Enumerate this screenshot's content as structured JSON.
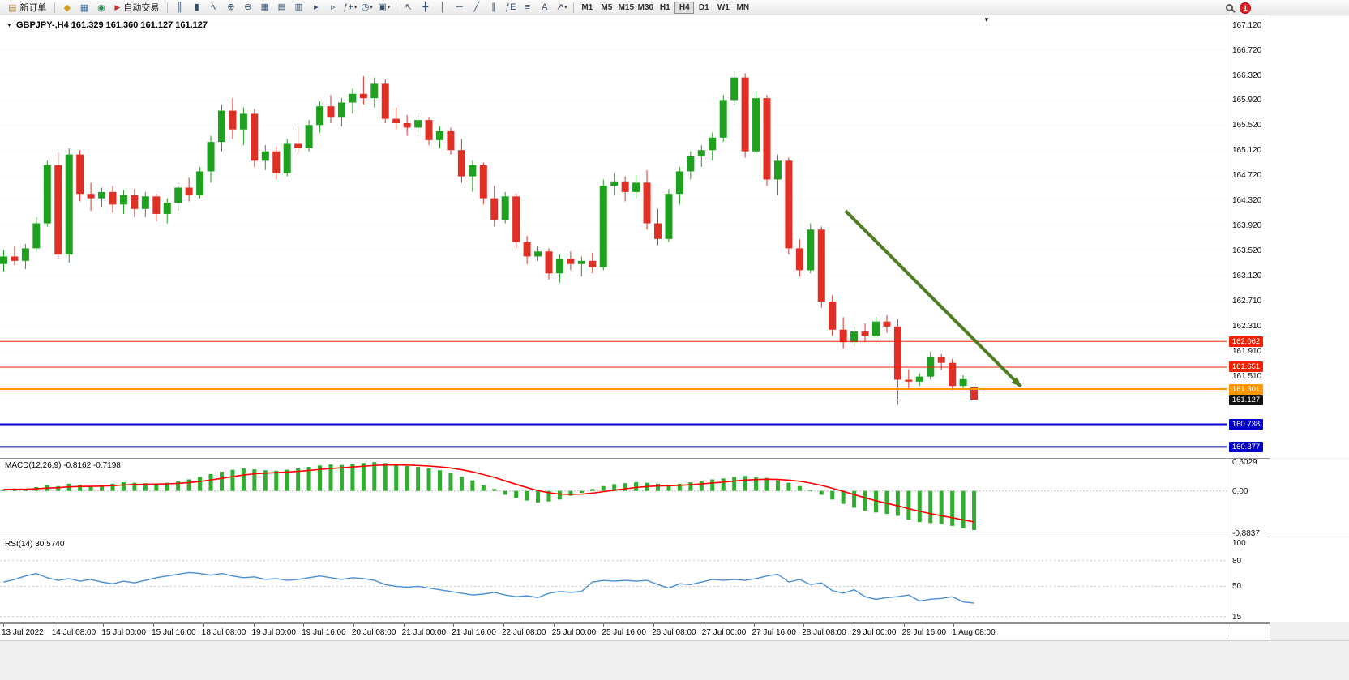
{
  "colors": {
    "up": "#1fa11f",
    "down": "#e03026",
    "macd_bar": "#2fae2f",
    "macd_signal": "#ff0000",
    "rsi_line": "#4a8fd4",
    "grid": "#e7e7e7",
    "arrow": "#4e7d22"
  },
  "toolbar": {
    "new_order": {
      "icon": "▤",
      "label": "新订单"
    },
    "window_icons": [
      {
        "name": "market-watch-icon",
        "glyph": "◆",
        "color": "#d49a1a"
      },
      {
        "name": "data-window-icon",
        "glyph": "▦",
        "color": "#3a6ea5"
      },
      {
        "name": "navigator-icon",
        "glyph": "◉",
        "color": "#2e8b57"
      }
    ],
    "auto_trading": {
      "icon": "▶",
      "label": "自动交易",
      "icon_color": "#cc3333"
    },
    "chart_tools": [
      {
        "name": "bar-chart-icon",
        "glyph": "║"
      },
      {
        "name": "candlestick-chart-icon",
        "glyph": "▮"
      },
      {
        "name": "line-chart-icon",
        "glyph": "∿"
      },
      {
        "name": "zoom-in-icon",
        "glyph": "⊕"
      },
      {
        "name": "zoom-out-icon",
        "glyph": "⊖"
      },
      {
        "name": "tile-windows-icon",
        "glyph": "▦"
      },
      {
        "name": "cascade-windows-icon",
        "glyph": "▤"
      },
      {
        "name": "arrange-windows-icon",
        "glyph": "▥"
      },
      {
        "name": "auto-scroll-icon",
        "glyph": "▸"
      },
      {
        "name": "chart-shift-icon",
        "glyph": "▹"
      },
      {
        "name": "indicators-icon",
        "glyph": "ƒ+",
        "caret": true
      },
      {
        "name": "periods-icon",
        "glyph": "◷",
        "caret": true
      },
      {
        "name": "templates-icon",
        "glyph": "▣",
        "caret": true
      }
    ],
    "draw_tools": [
      {
        "name": "cursor-icon",
        "glyph": "↖"
      },
      {
        "name": "crosshair-icon",
        "glyph": "╋"
      },
      {
        "name": "vertical-line-icon",
        "glyph": "│"
      },
      {
        "name": "horizontal-line-icon",
        "glyph": "─"
      },
      {
        "name": "trendline-icon",
        "glyph": "╱"
      },
      {
        "name": "channel-icon",
        "glyph": "∥"
      },
      {
        "name": "fibonacci-icon",
        "glyph": "ƒE"
      },
      {
        "name": "shapes-icon",
        "glyph": "≡"
      },
      {
        "name": "text-icon",
        "glyph": "A"
      },
      {
        "name": "arrows-icon",
        "glyph": "↗",
        "caret": true
      }
    ],
    "caret_glyph": "▾",
    "timeframes": [
      "M1",
      "M5",
      "M15",
      "M30",
      "H1",
      "H4",
      "D1",
      "W1",
      "MN"
    ],
    "active_timeframe": "H4",
    "notification_badge": "1"
  },
  "chart": {
    "title": "GBPJPY-,H4 161.329 161.360 161.127 161.127",
    "menu_marker": "▼",
    "shift_marker": "▼"
  },
  "time_axis": {
    "labels": [
      "13 Jul 2022",
      "14 Jul 08:00",
      "15 Jul 00:00",
      "15 Jul 16:00",
      "18 Jul 08:00",
      "19 Jul 00:00",
      "19 Jul 16:00",
      "20 Jul 08:00",
      "21 Jul 00:00",
      "21 Jul 16:00",
      "22 Jul 08:00",
      "25 Jul 00:00",
      "25 Jul 16:00",
      "26 Jul 08:00",
      "27 Jul 00:00",
      "27 Jul 16:00",
      "28 Jul 08:00",
      "29 Jul 00:00",
      "29 Jul 16:00",
      "1 Aug 08:00"
    ]
  },
  "chart_data": [
    {
      "type": "candlestick",
      "symbol": "GBPJPY-",
      "timeframe": "H4",
      "ylim": [
        160.2,
        167.26
      ],
      "price_ticks": [
        "167.120",
        "166.720",
        "166.320",
        "165.920",
        "165.520",
        "165.120",
        "164.720",
        "164.320",
        "163.920",
        "163.520",
        "163.120",
        "162.710",
        "162.310",
        "161.910",
        "161.510"
      ],
      "horizontal_lines": [
        {
          "price": 162.062,
          "label": "162.062",
          "color": "#f02000",
          "width": 1
        },
        {
          "price": 161.651,
          "label": "161.651",
          "color": "#f02000",
          "width": 1
        },
        {
          "price": 161.301,
          "label": "161.301",
          "color": "#ff9800",
          "width": 2
        },
        {
          "price": 161.127,
          "label": "161.127",
          "color": "#101010",
          "width": 1
        },
        {
          "price": 160.738,
          "label": "160.738",
          "color": "#0000cd",
          "width": 2
        },
        {
          "price": 160.377,
          "label": "160.377",
          "color": "#0000cd",
          "width": 2
        }
      ],
      "annotation_arrow": {
        "from_index": 77.2,
        "from_price": 164.15,
        "to_index": 93.3,
        "to_price": 161.34,
        "color": "#4e7d22"
      },
      "ohlc": [
        [
          163.3,
          163.52,
          163.18,
          163.42
        ],
        [
          163.42,
          163.58,
          163.28,
          163.35
        ],
        [
          163.35,
          163.62,
          163.22,
          163.55
        ],
        [
          163.55,
          164.05,
          163.5,
          163.95
        ],
        [
          163.95,
          164.95,
          163.9,
          164.88
        ],
        [
          164.88,
          165.08,
          163.38,
          163.45
        ],
        [
          163.45,
          165.15,
          163.32,
          165.05
        ],
        [
          165.05,
          165.12,
          164.3,
          164.42
        ],
        [
          164.42,
          164.6,
          164.15,
          164.35
        ],
        [
          164.35,
          164.52,
          164.2,
          164.45
        ],
        [
          164.45,
          164.55,
          164.12,
          164.25
        ],
        [
          164.25,
          164.48,
          164.1,
          164.4
        ],
        [
          164.4,
          164.5,
          164.05,
          164.18
        ],
        [
          164.18,
          164.45,
          164.05,
          164.38
        ],
        [
          164.38,
          164.42,
          163.98,
          164.1
        ],
        [
          164.1,
          164.35,
          163.95,
          164.28
        ],
        [
          164.28,
          164.6,
          164.15,
          164.52
        ],
        [
          164.52,
          164.68,
          164.3,
          164.4
        ],
        [
          164.4,
          164.85,
          164.35,
          164.78
        ],
        [
          164.78,
          165.35,
          164.6,
          165.25
        ],
        [
          165.25,
          165.85,
          165.1,
          165.75
        ],
        [
          165.75,
          165.95,
          165.3,
          165.45
        ],
        [
          165.45,
          165.8,
          165.2,
          165.7
        ],
        [
          165.7,
          165.78,
          164.85,
          164.95
        ],
        [
          164.95,
          165.2,
          164.8,
          165.1
        ],
        [
          165.1,
          165.18,
          164.65,
          164.75
        ],
        [
          164.75,
          165.3,
          164.7,
          165.22
        ],
        [
          165.22,
          165.5,
          165.05,
          165.15
        ],
        [
          165.15,
          165.6,
          165.1,
          165.52
        ],
        [
          165.52,
          165.9,
          165.4,
          165.82
        ],
        [
          165.82,
          166.0,
          165.55,
          165.65
        ],
        [
          165.65,
          165.95,
          165.5,
          165.88
        ],
        [
          165.88,
          166.1,
          165.7,
          166.02
        ],
        [
          166.02,
          166.3,
          165.85,
          165.95
        ],
        [
          165.95,
          166.28,
          165.8,
          166.18
        ],
        [
          166.18,
          166.25,
          165.55,
          165.62
        ],
        [
          165.62,
          165.8,
          165.45,
          165.55
        ],
        [
          165.55,
          165.68,
          165.35,
          165.48
        ],
        [
          165.48,
          165.72,
          165.4,
          165.6
        ],
        [
          165.6,
          165.65,
          165.2,
          165.28
        ],
        [
          165.28,
          165.5,
          165.15,
          165.42
        ],
        [
          165.42,
          165.48,
          165.05,
          165.12
        ],
        [
          165.12,
          165.3,
          164.6,
          164.7
        ],
        [
          164.7,
          164.95,
          164.45,
          164.88
        ],
        [
          164.88,
          164.92,
          164.25,
          164.35
        ],
        [
          164.35,
          164.55,
          163.9,
          164.0
        ],
        [
          164.0,
          164.45,
          163.95,
          164.38
        ],
        [
          164.38,
          164.42,
          163.55,
          163.65
        ],
        [
          163.65,
          163.75,
          163.3,
          163.42
        ],
        [
          163.42,
          163.58,
          163.35,
          163.5
        ],
        [
          163.5,
          163.55,
          163.05,
          163.15
        ],
        [
          163.15,
          163.45,
          163.0,
          163.38
        ],
        [
          163.38,
          163.5,
          163.2,
          163.3
        ],
        [
          163.3,
          163.42,
          163.1,
          163.35
        ],
        [
          163.35,
          163.48,
          163.15,
          163.25
        ],
        [
          163.25,
          164.65,
          163.2,
          164.55
        ],
        [
          164.55,
          164.75,
          164.4,
          164.62
        ],
        [
          164.62,
          164.7,
          164.3,
          164.45
        ],
        [
          164.45,
          164.72,
          164.35,
          164.6
        ],
        [
          164.6,
          164.8,
          163.85,
          163.95
        ],
        [
          163.95,
          164.18,
          163.6,
          163.7
        ],
        [
          163.7,
          164.5,
          163.65,
          164.42
        ],
        [
          164.42,
          164.85,
          164.25,
          164.78
        ],
        [
          164.78,
          165.1,
          164.65,
          165.02
        ],
        [
          165.02,
          165.2,
          164.85,
          165.12
        ],
        [
          165.12,
          165.4,
          164.95,
          165.32
        ],
        [
          165.32,
          166.0,
          165.25,
          165.92
        ],
        [
          165.92,
          166.38,
          165.85,
          166.28
        ],
        [
          166.28,
          166.35,
          165.0,
          165.1
        ],
        [
          165.1,
          166.05,
          165.05,
          165.95
        ],
        [
          165.95,
          166.0,
          164.55,
          164.65
        ],
        [
          164.65,
          165.05,
          164.4,
          164.95
        ],
        [
          164.95,
          165.0,
          163.45,
          163.55
        ],
        [
          163.55,
          163.7,
          163.1,
          163.2
        ],
        [
          163.2,
          163.95,
          163.15,
          163.85
        ],
        [
          163.85,
          163.9,
          162.6,
          162.7
        ],
        [
          162.7,
          162.8,
          162.15,
          162.25
        ],
        [
          162.25,
          162.45,
          161.95,
          162.05
        ],
        [
          162.05,
          162.3,
          161.98,
          162.22
        ],
        [
          162.22,
          162.35,
          162.05,
          162.15
        ],
        [
          162.15,
          162.45,
          162.1,
          162.38
        ],
        [
          162.38,
          162.48,
          162.2,
          162.3
        ],
        [
          162.3,
          162.42,
          161.05,
          161.45
        ],
        [
          161.45,
          161.62,
          161.3,
          161.42
        ],
        [
          161.42,
          161.55,
          161.35,
          161.5
        ],
        [
          161.5,
          161.9,
          161.45,
          161.82
        ],
        [
          161.82,
          161.86,
          161.6,
          161.72
        ],
        [
          161.72,
          161.78,
          161.28,
          161.35
        ],
        [
          161.35,
          161.52,
          161.3,
          161.46
        ],
        [
          161.329,
          161.36,
          161.127,
          161.127
        ]
      ]
    },
    {
      "type": "bar",
      "name": "MACD",
      "label": "MACD(12,26,9) -0.8162 -0.7198",
      "macd_current": -0.8162,
      "signal_current": -0.7198,
      "ylim": [
        -0.8837,
        0.6029
      ],
      "axis_labels": [
        "0.6029",
        "0.00",
        "-0.8837"
      ],
      "values": [
        0.03,
        0.05,
        0.04,
        0.08,
        0.12,
        0.1,
        0.15,
        0.13,
        0.1,
        0.12,
        0.15,
        0.18,
        0.17,
        0.16,
        0.15,
        0.17,
        0.2,
        0.24,
        0.29,
        0.35,
        0.4,
        0.44,
        0.47,
        0.45,
        0.43,
        0.42,
        0.44,
        0.47,
        0.5,
        0.53,
        0.55,
        0.54,
        0.56,
        0.58,
        0.6,
        0.58,
        0.55,
        0.52,
        0.5,
        0.47,
        0.43,
        0.38,
        0.3,
        0.22,
        0.12,
        0.04,
        -0.08,
        -0.15,
        -0.2,
        -0.24,
        -0.22,
        -0.18,
        -0.1,
        -0.04,
        0.04,
        0.1,
        0.14,
        0.16,
        0.18,
        0.17,
        0.15,
        0.13,
        0.15,
        0.18,
        0.21,
        0.24,
        0.26,
        0.29,
        0.31,
        0.28,
        0.27,
        0.22,
        0.17,
        0.1,
        0.02,
        -0.08,
        -0.18,
        -0.27,
        -0.35,
        -0.41,
        -0.45,
        -0.48,
        -0.52,
        -0.6,
        -0.65,
        -0.67,
        -0.69,
        -0.73,
        -0.78,
        -0.8162
      ]
    },
    {
      "type": "line",
      "name": "RSI",
      "label": "RSI(14) 30.5740",
      "current": 30.574,
      "ylim": [
        0,
        100
      ],
      "levels": [
        80,
        50,
        15
      ],
      "axis_labels": [
        "100",
        "80",
        "50",
        "15"
      ],
      "values": [
        55,
        58,
        62,
        65,
        60,
        57,
        59,
        56,
        58,
        55,
        53,
        56,
        54,
        57,
        60,
        62,
        64,
        66,
        65,
        63,
        65,
        62,
        60,
        61,
        58,
        59,
        57,
        58,
        60,
        62,
        60,
        58,
        60,
        59,
        57,
        52,
        50,
        49,
        50,
        48,
        46,
        44,
        42,
        40,
        41,
        43,
        40,
        38,
        39,
        37,
        42,
        44,
        43,
        44,
        55,
        57,
        56,
        57,
        56,
        57,
        52,
        48,
        53,
        52,
        55,
        58,
        57,
        58,
        57,
        59,
        62,
        64,
        55,
        58,
        52,
        54,
        45,
        42,
        46,
        38,
        35,
        37,
        38,
        40,
        33,
        35,
        36,
        38,
        32,
        30.574
      ]
    }
  ]
}
